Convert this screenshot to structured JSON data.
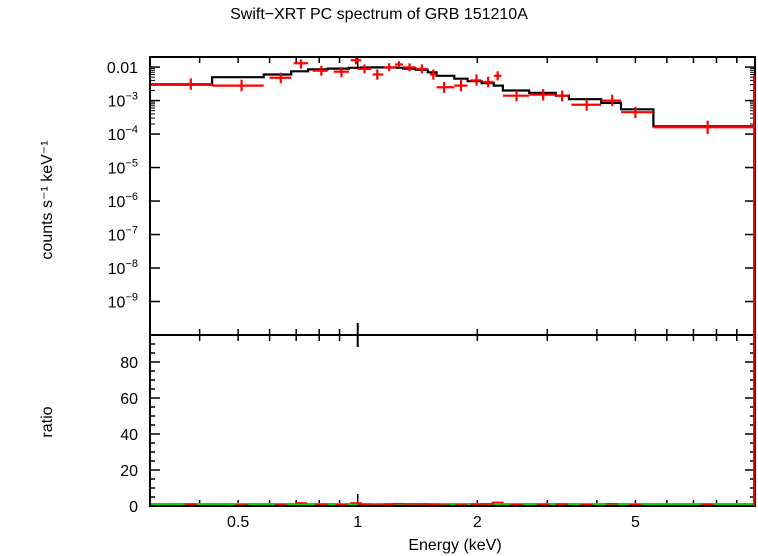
{
  "chart_data": [
    {
      "panel": "spectrum",
      "type": "line",
      "title": "Swift−XRT PC spectrum of GRB 151210A",
      "xlabel": "Energy (keV)",
      "ylabel": "counts s⁻¹ keV⁻¹",
      "xscale": "log",
      "yscale": "log",
      "xlim": [
        0.3,
        10
      ],
      "ylim": [
        1e-10,
        0.02
      ],
      "ytick_labels": [
        {
          "v": 0.01,
          "base": "0.01",
          "exp": ""
        },
        {
          "v": 0.001,
          "base": "10",
          "exp": "−3"
        },
        {
          "v": 0.0001,
          "base": "10",
          "exp": "−4"
        },
        {
          "v": 1e-05,
          "base": "10",
          "exp": "−5"
        },
        {
          "v": 1e-06,
          "base": "10",
          "exp": "−6"
        },
        {
          "v": 1e-07,
          "base": "10",
          "exp": "−7"
        },
        {
          "v": 1e-08,
          "base": "10",
          "exp": "−8"
        },
        {
          "v": 1e-09,
          "base": "10",
          "exp": "−9"
        }
      ],
      "series": [
        {
          "role": "data",
          "color": "#ff0000",
          "points": [
            {
              "x": 0.38,
              "xlo": 0.3,
              "xhi": 0.43,
              "y": 0.0031,
              "ylo": 0.0021,
              "yhi": 0.0046
            },
            {
              "x": 0.51,
              "xlo": 0.43,
              "xhi": 0.58,
              "y": 0.0028,
              "ylo": 0.0019,
              "yhi": 0.0042
            },
            {
              "x": 0.64,
              "xlo": 0.6,
              "xhi": 0.68,
              "y": 0.0048,
              "ylo": 0.0033,
              "yhi": 0.0068
            },
            {
              "x": 0.72,
              "xlo": 0.69,
              "xhi": 0.75,
              "y": 0.013,
              "ylo": 0.009,
              "yhi": 0.017
            },
            {
              "x": 0.81,
              "xlo": 0.77,
              "xhi": 0.84,
              "y": 0.0078,
              "ylo": 0.0055,
              "yhi": 0.011
            },
            {
              "x": 0.91,
              "xlo": 0.87,
              "xhi": 0.95,
              "y": 0.0073,
              "ylo": 0.005,
              "yhi": 0.01
            },
            {
              "x": 0.99,
              "xlo": 0.96,
              "xhi": 1.02,
              "y": 0.016,
              "ylo": 0.012,
              "yhi": 0.019
            },
            {
              "x": 1.04,
              "xlo": 1.0,
              "xhi": 1.08,
              "y": 0.0088,
              "ylo": 0.0065,
              "yhi": 0.012
            },
            {
              "x": 1.12,
              "xlo": 1.09,
              "xhi": 1.16,
              "y": 0.006,
              "ylo": 0.0042,
              "yhi": 0.0085
            },
            {
              "x": 1.2,
              "xlo": 1.16,
              "xhi": 1.25,
              "y": 0.0098,
              "ylo": 0.0075,
              "yhi": 0.013
            },
            {
              "x": 1.27,
              "xlo": 1.24,
              "xhi": 1.3,
              "y": 0.012,
              "ylo": 0.0095,
              "yhi": 0.015
            },
            {
              "x": 1.35,
              "xlo": 1.3,
              "xhi": 1.4,
              "y": 0.0098,
              "ylo": 0.0075,
              "yhi": 0.013
            },
            {
              "x": 1.45,
              "xlo": 1.4,
              "xhi": 1.5,
              "y": 0.0088,
              "ylo": 0.0065,
              "yhi": 0.012
            },
            {
              "x": 1.55,
              "xlo": 1.52,
              "xhi": 1.58,
              "y": 0.006,
              "ylo": 0.0042,
              "yhi": 0.0085
            },
            {
              "x": 1.65,
              "xlo": 1.58,
              "xhi": 1.75,
              "y": 0.0025,
              "ylo": 0.0017,
              "yhi": 0.0036
            },
            {
              "x": 1.82,
              "xlo": 1.75,
              "xhi": 1.89,
              "y": 0.0028,
              "ylo": 0.0019,
              "yhi": 0.0042
            },
            {
              "x": 1.99,
              "xlo": 1.92,
              "xhi": 2.05,
              "y": 0.004,
              "ylo": 0.0028,
              "yhi": 0.006
            },
            {
              "x": 2.13,
              "xlo": 2.07,
              "xhi": 2.2,
              "y": 0.0036,
              "ylo": 0.0025,
              "yhi": 0.0052
            },
            {
              "x": 2.25,
              "xlo": 2.2,
              "xhi": 2.3,
              "y": 0.0055,
              "ylo": 0.004,
              "yhi": 0.0075
            },
            {
              "x": 2.51,
              "xlo": 2.32,
              "xhi": 2.7,
              "y": 0.0014,
              "ylo": 0.00095,
              "yhi": 0.002
            },
            {
              "x": 2.93,
              "xlo": 2.7,
              "xhi": 3.15,
              "y": 0.0015,
              "ylo": 0.001,
              "yhi": 0.0022
            },
            {
              "x": 3.27,
              "xlo": 3.15,
              "xhi": 3.4,
              "y": 0.0014,
              "ylo": 0.00095,
              "yhi": 0.002
            },
            {
              "x": 3.77,
              "xlo": 3.45,
              "xhi": 4.1,
              "y": 0.00075,
              "ylo": 0.0005,
              "yhi": 0.0011
            },
            {
              "x": 4.37,
              "xlo": 4.1,
              "xhi": 4.6,
              "y": 0.001,
              "ylo": 0.00068,
              "yhi": 0.0015
            },
            {
              "x": 5.0,
              "xlo": 4.6,
              "xhi": 5.55,
              "y": 0.00045,
              "ylo": 0.0003,
              "yhi": 0.00065
            },
            {
              "x": 7.6,
              "xlo": 5.55,
              "xhi": 10.0,
              "y": 0.00016,
              "ylo": 0.0001,
              "yhi": 0.00025
            }
          ]
        },
        {
          "role": "model",
          "color": "#000000",
          "steps": [
            {
              "x0": 0.3,
              "x1": 0.43,
              "y": 0.003
            },
            {
              "x0": 0.43,
              "x1": 0.58,
              "y": 0.005
            },
            {
              "x0": 0.58,
              "x1": 0.68,
              "y": 0.006
            },
            {
              "x0": 0.68,
              "x1": 0.75,
              "y": 0.0075
            },
            {
              "x0": 0.75,
              "x1": 0.84,
              "y": 0.0085
            },
            {
              "x0": 0.84,
              "x1": 0.95,
              "y": 0.009
            },
            {
              "x0": 0.95,
              "x1": 1.02,
              "y": 0.0095
            },
            {
              "x0": 1.02,
              "x1": 1.08,
              "y": 0.0097
            },
            {
              "x0": 1.08,
              "x1": 1.16,
              "y": 0.0098
            },
            {
              "x0": 1.16,
              "x1": 1.25,
              "y": 0.0097
            },
            {
              "x0": 1.25,
              "x1": 1.3,
              "y": 0.0095
            },
            {
              "x0": 1.3,
              "x1": 1.4,
              "y": 0.009
            },
            {
              "x0": 1.4,
              "x1": 1.5,
              "y": 0.0083
            },
            {
              "x0": 1.5,
              "x1": 1.58,
              "y": 0.007
            },
            {
              "x0": 1.58,
              "x1": 1.75,
              "y": 0.0055
            },
            {
              "x0": 1.75,
              "x1": 1.89,
              "y": 0.0045
            },
            {
              "x0": 1.89,
              "x1": 2.05,
              "y": 0.0038
            },
            {
              "x0": 2.05,
              "x1": 2.2,
              "y": 0.0033
            },
            {
              "x0": 2.2,
              "x1": 2.32,
              "y": 0.0028
            },
            {
              "x0": 2.32,
              "x1": 2.7,
              "y": 0.002
            },
            {
              "x0": 2.7,
              "x1": 3.15,
              "y": 0.0017
            },
            {
              "x0": 3.15,
              "x1": 3.4,
              "y": 0.0014
            },
            {
              "x0": 3.4,
              "x1": 4.1,
              "y": 0.0011
            },
            {
              "x0": 4.1,
              "x1": 4.6,
              "y": 0.00085
            },
            {
              "x0": 4.6,
              "x1": 5.55,
              "y": 0.00055
            },
            {
              "x0": 5.55,
              "x1": 10.0,
              "y": 0.00017
            }
          ]
        }
      ]
    },
    {
      "panel": "ratio",
      "type": "scatter",
      "xlabel": "Energy (keV)",
      "ylabel": "ratio",
      "xscale": "log",
      "xlim": [
        0.3,
        10
      ],
      "ylim": [
        0,
        95
      ],
      "yticks": [
        0,
        20,
        40,
        60,
        80
      ],
      "xticks": [
        {
          "v": 0.5,
          "label": "0.5"
        },
        {
          "v": 1,
          "label": "1"
        },
        {
          "v": 2,
          "label": "2"
        },
        {
          "v": 5,
          "label": "5"
        }
      ],
      "reference_line": {
        "y": 1,
        "color": "#00e000"
      },
      "points_color": "#ff0000",
      "points": [
        {
          "x": 0.38,
          "y": 1.0
        },
        {
          "x": 0.51,
          "y": 0.6
        },
        {
          "x": 0.64,
          "y": 0.8
        },
        {
          "x": 0.72,
          "y": 1.7
        },
        {
          "x": 0.81,
          "y": 0.9
        },
        {
          "x": 0.91,
          "y": 0.8
        },
        {
          "x": 0.99,
          "y": 1.7
        },
        {
          "x": 1.04,
          "y": 0.9
        },
        {
          "x": 1.12,
          "y": 0.6
        },
        {
          "x": 1.2,
          "y": 1.0
        },
        {
          "x": 1.27,
          "y": 1.3
        },
        {
          "x": 1.35,
          "y": 1.1
        },
        {
          "x": 1.45,
          "y": 1.1
        },
        {
          "x": 1.55,
          "y": 0.9
        },
        {
          "x": 1.65,
          "y": 0.5
        },
        {
          "x": 1.82,
          "y": 0.6
        },
        {
          "x": 1.99,
          "y": 1.0
        },
        {
          "x": 2.13,
          "y": 1.1
        },
        {
          "x": 2.25,
          "y": 2.0
        },
        {
          "x": 2.51,
          "y": 0.7
        },
        {
          "x": 2.93,
          "y": 0.9
        },
        {
          "x": 3.27,
          "y": 1.0
        },
        {
          "x": 3.77,
          "y": 0.7
        },
        {
          "x": 4.37,
          "y": 1.2
        },
        {
          "x": 5.0,
          "y": 0.8
        },
        {
          "x": 7.6,
          "y": 0.9
        }
      ]
    }
  ]
}
